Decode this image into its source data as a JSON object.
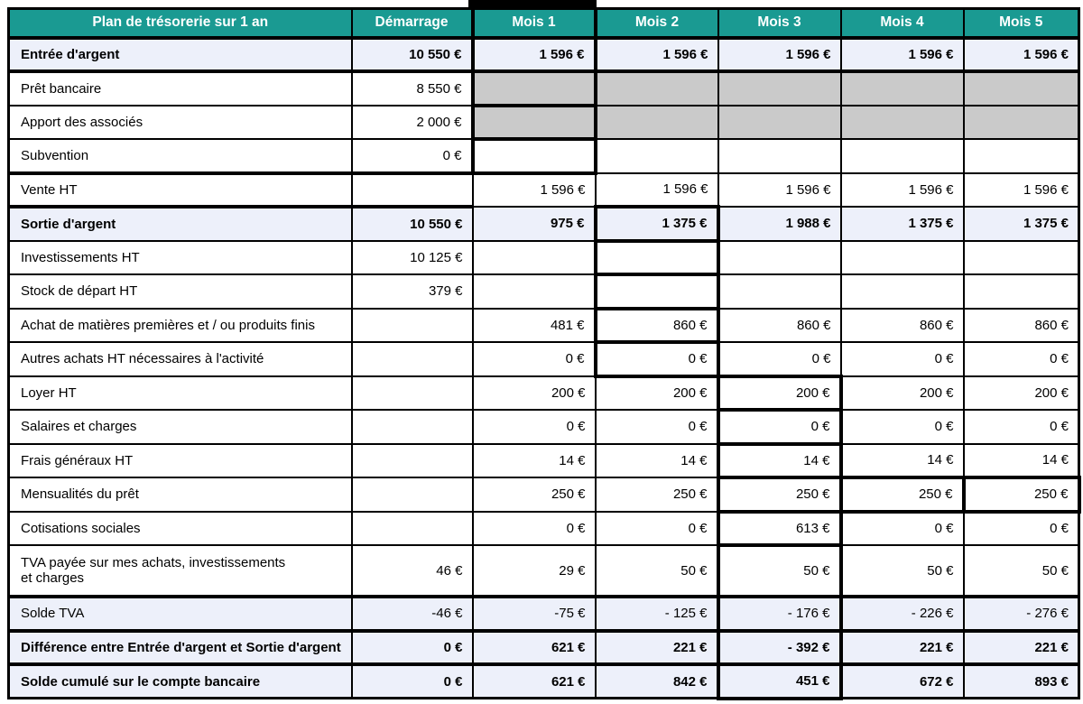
{
  "title": "Plan de trésorerie sur 1 an",
  "colors": {
    "header_teal": "#1A9A92",
    "summary_row_lavender": "#EDF0FA",
    "blocked_cell_gray": "#CACACA",
    "grid_border": "#000000"
  },
  "columns": [
    "Plan de trésorerie sur 1 an",
    "Démarrage",
    "Mois 1",
    "Mois 2",
    "Mois 3",
    "Mois 4",
    "Mois 5"
  ],
  "rows": [
    {
      "label": "Entrée d'argent",
      "bold": true,
      "lavender": true,
      "thickTop": true,
      "thickBottom": true,
      "cells": [
        {
          "v": "10 550 €"
        },
        {
          "v": "1 596 €",
          "thick": "lr"
        },
        {
          "v": "1 596 €"
        },
        {
          "v": "1 596 €"
        },
        {
          "v": "1 596 €"
        },
        {
          "v": "1 596 €"
        }
      ]
    },
    {
      "label": "Prêt bancaire",
      "cells": [
        {
          "v": "8 550 €"
        },
        {
          "gray": true,
          "thick": "lrb"
        },
        {
          "gray": true
        },
        {
          "gray": true
        },
        {
          "gray": true
        },
        {
          "gray": true
        }
      ]
    },
    {
      "label": "Apport des associés",
      "cells": [
        {
          "v": "2 000 €"
        },
        {
          "gray": true,
          "thick": "lrb"
        },
        {
          "gray": true
        },
        {
          "gray": true
        },
        {
          "gray": true
        },
        {
          "gray": true
        }
      ]
    },
    {
      "label": "Subvention",
      "cells": [
        {
          "v": "0 €"
        },
        {
          "thick": "lrb"
        },
        {},
        {},
        {},
        {}
      ]
    },
    {
      "label": "Vente HT",
      "labelThick": "tb",
      "cells": [
        {
          "thick": "tb"
        },
        {
          "v": "1 596 €"
        },
        {
          "v": "1 596 €"
        },
        {
          "v": "1 596 €"
        },
        {
          "v": "1 596 €"
        },
        {
          "v": "1 596 €"
        }
      ]
    },
    {
      "label": "Sortie d'argent",
      "bold": true,
      "lavender": true,
      "cells": [
        {
          "v": "10 550 €"
        },
        {
          "v": "975 €"
        },
        {
          "v": "1 375 €",
          "thick": "tlrb"
        },
        {
          "v": "1 988 €"
        },
        {
          "v": "1 375 €"
        },
        {
          "v": "1 375 €"
        }
      ]
    },
    {
      "label": "Investissements HT",
      "cells": [
        {
          "v": "10 125 €"
        },
        {},
        {
          "thick": "lrb"
        },
        {},
        {},
        {}
      ]
    },
    {
      "label": "Stock de départ HT",
      "cells": [
        {
          "v": "379 €"
        },
        {},
        {
          "thick": "lrb"
        },
        {},
        {},
        {}
      ]
    },
    {
      "label": "Achat de matières premières et / ou produits finis",
      "cells": [
        {},
        {
          "v": "481 €"
        },
        {
          "v": "860 €",
          "thick": "lrb"
        },
        {
          "v": "860 €"
        },
        {
          "v": "860 €"
        },
        {
          "v": "860 €"
        }
      ]
    },
    {
      "label": "Autres achats HT nécessaires à l'activité",
      "cells": [
        {},
        {
          "v": "0 €"
        },
        {
          "v": "0 €",
          "thick": "lrb"
        },
        {
          "v": "0 €"
        },
        {
          "v": "0 €"
        },
        {
          "v": "0 €"
        }
      ]
    },
    {
      "label": "Loyer HT",
      "cells": [
        {},
        {
          "v": "200 €"
        },
        {
          "v": "200 €"
        },
        {
          "v": "200 €",
          "thick": "tlrb"
        },
        {
          "v": "200 €"
        },
        {
          "v": "200 €"
        }
      ]
    },
    {
      "label": "Salaires et charges",
      "cells": [
        {},
        {
          "v": "0 €"
        },
        {
          "v": "0 €"
        },
        {
          "v": "0 €",
          "thick": "lrb"
        },
        {
          "v": "0 €"
        },
        {
          "v": "0 €"
        }
      ]
    },
    {
      "label": "Frais généraux HT",
      "cells": [
        {},
        {
          "v": "14 €"
        },
        {
          "v": "14 €"
        },
        {
          "v": "14 €",
          "thick": "lrb"
        },
        {
          "v": "14 €"
        },
        {
          "v": "14 €"
        }
      ]
    },
    {
      "label": "Mensualités du prêt",
      "cells": [
        {},
        {
          "v": "250 €"
        },
        {
          "v": "250 €"
        },
        {
          "v": "250 €",
          "thick": "lrb"
        },
        {
          "v": "250 €",
          "thick": "tlrb"
        },
        {
          "v": "250 €",
          "thick": "tbr"
        }
      ]
    },
    {
      "label": "Cotisations sociales",
      "cells": [
        {},
        {
          "v": "0 €"
        },
        {
          "v": "0 €"
        },
        {
          "v": "613 €",
          "thick": "lrb"
        },
        {
          "v": "0 €"
        },
        {
          "v": "0 €"
        }
      ]
    },
    {
      "label": "TVA payée sur mes achats, investissements\net charges",
      "tall": true,
      "cells": [
        {
          "v": "46 €"
        },
        {
          "v": "29 €"
        },
        {
          "v": "50 €"
        },
        {
          "v": "50 €",
          "thick": "lrb"
        },
        {
          "v": "50 €"
        },
        {
          "v": "50 €"
        }
      ]
    },
    {
      "label": "Solde TVA",
      "lavender": true,
      "thickTop": true,
      "cells": [
        {
          "v": "-46 €"
        },
        {
          "v": "-75 €"
        },
        {
          "v": "- 125 €"
        },
        {
          "v": "- 176 €",
          "thick": "lrb"
        },
        {
          "v": "- 226 €"
        },
        {
          "v": "- 276 €"
        }
      ]
    },
    {
      "label": "Différence entre Entrée d'argent et Sortie d'argent",
      "bold": true,
      "lavender": true,
      "thickTop": true,
      "cells": [
        {
          "v": "0 €"
        },
        {
          "v": "621 €"
        },
        {
          "v": "221 €"
        },
        {
          "v": "- 392 €",
          "thick": "lrb"
        },
        {
          "v": "221 €"
        },
        {
          "v": "221 €"
        }
      ]
    },
    {
      "label": "Solde cumulé sur le compte bancaire",
      "bold": true,
      "lavender": true,
      "thickTop": true,
      "cells": [
        {
          "v": "0 €"
        },
        {
          "v": "621 €"
        },
        {
          "v": "842 €"
        },
        {
          "v": "451 €",
          "thick": "lrb"
        },
        {
          "v": "672 €"
        },
        {
          "v": "893 €"
        }
      ]
    }
  ]
}
